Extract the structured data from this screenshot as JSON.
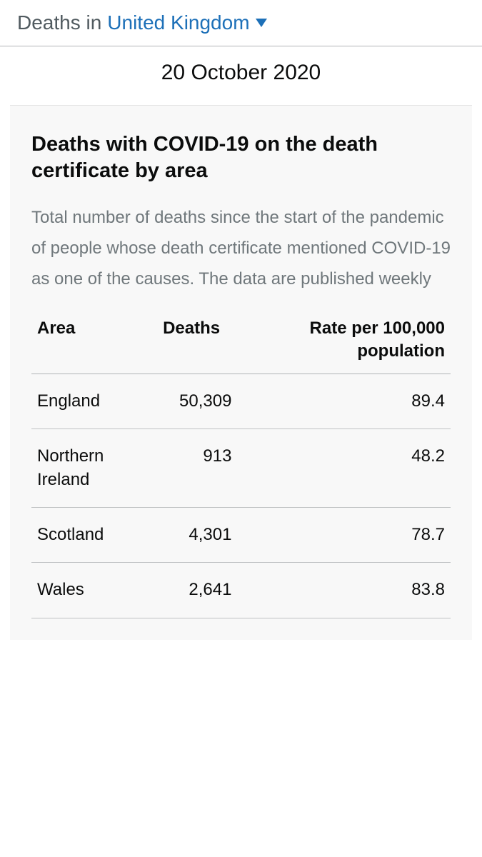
{
  "header": {
    "prefix": "Deaths in",
    "location": "United Kingdom"
  },
  "date": "20 October 2020",
  "card": {
    "title": "Deaths with COVID-19 on the death certificate by area",
    "description": "Total number of deaths since the start of the pandemic of people whose death certificate mentioned COVID-19 as one of the causes. The data are published weekly"
  },
  "table": {
    "type": "table",
    "columns": [
      "Area",
      "Deaths",
      "Rate per 100,000 population"
    ],
    "column_align": [
      "left",
      "right",
      "right"
    ],
    "rows": [
      {
        "area": "England",
        "deaths": "50,309",
        "rate": "89.4"
      },
      {
        "area": "Northern Ireland",
        "deaths": "913",
        "rate": "48.2"
      },
      {
        "area": "Scotland",
        "deaths": "4,301",
        "rate": "78.7"
      },
      {
        "area": "Wales",
        "deaths": "2,641",
        "rate": "83.8"
      }
    ],
    "border_color": "#b1b4b6",
    "header_fontweight": 700,
    "cell_fontsize": 24,
    "background_color": "#f8f8f8"
  },
  "colors": {
    "link": "#1d70b8",
    "text": "#0b0c0c",
    "muted": "#6f777b",
    "card_bg": "#f8f8f8",
    "divider": "#b1b4b6"
  }
}
